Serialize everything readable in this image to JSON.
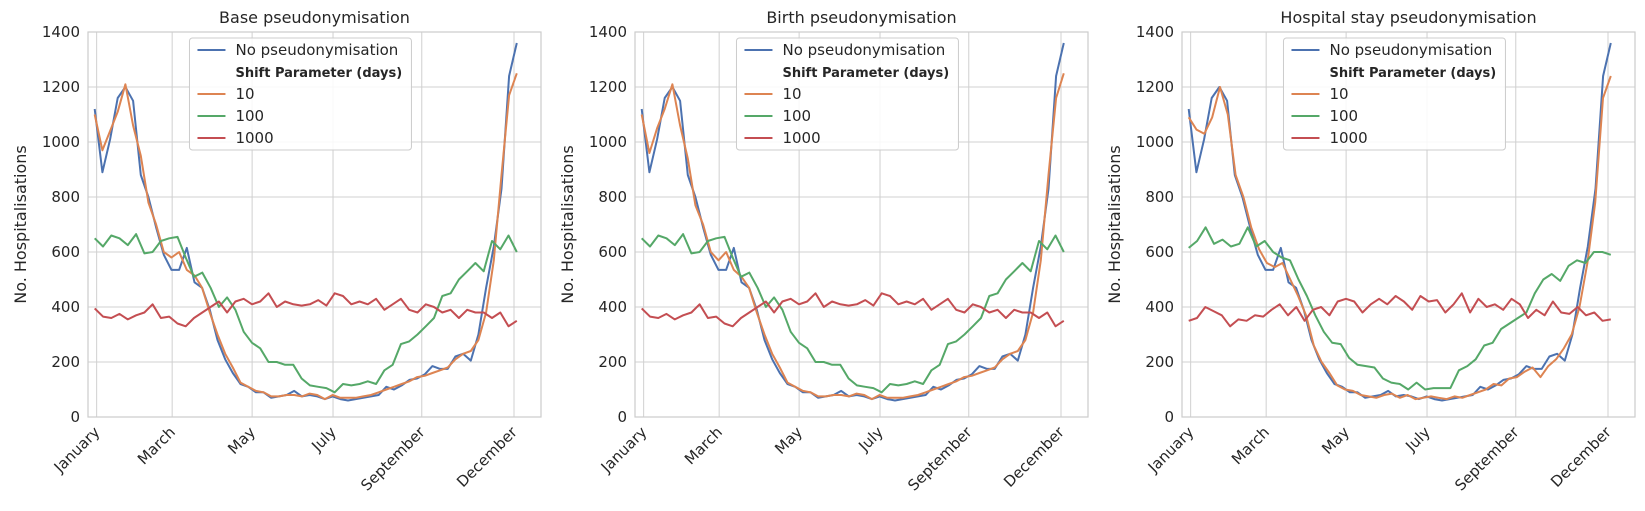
{
  "colors": {
    "background": "#ffffff",
    "grid": "#d0d0d0",
    "spine": "#cccccc",
    "text": "#262626",
    "legend_border": "#cccccc"
  },
  "legend": {
    "placement": "upper-center",
    "header": "Shift Parameter (days)",
    "entries": [
      {
        "label": "No pseudonymisation",
        "color": "#4c72b0"
      },
      {
        "label": "10",
        "color": "#dd8452"
      },
      {
        "label": "100",
        "color": "#55a868"
      },
      {
        "label": "1000",
        "color": "#c44e52"
      }
    ]
  },
  "chart_data": [
    {
      "type": "line",
      "title": "Base pseudonymisation",
      "xlabel": "",
      "ylabel": "No. Hospitalisations",
      "x_ticks": [
        "January",
        "March",
        "May",
        "July",
        "September",
        "December"
      ],
      "y_ticks": [
        0,
        200,
        400,
        600,
        800,
        1000,
        1200,
        1400
      ],
      "ylim": [
        0,
        1400
      ],
      "grid": true,
      "series": [
        {
          "name": "No pseudonymisation",
          "color": "#4c72b0",
          "values": [
            1120,
            890,
            1010,
            1160,
            1200,
            1150,
            880,
            800,
            690,
            590,
            535,
            535,
            615,
            490,
            470,
            390,
            280,
            210,
            160,
            120,
            110,
            90,
            90,
            70,
            75,
            80,
            95,
            75,
            80,
            75,
            65,
            75,
            65,
            60,
            65,
            70,
            75,
            80,
            110,
            100,
            115,
            135,
            140,
            155,
            185,
            175,
            175,
            220,
            230,
            205,
            300,
            470,
            620,
            830,
            1240,
            1360
          ]
        },
        {
          "name": "10",
          "color": "#dd8452",
          "values": [
            1100,
            970,
            1040,
            1110,
            1210,
            1060,
            950,
            780,
            700,
            600,
            580,
            600,
            535,
            515,
            470,
            380,
            300,
            230,
            180,
            125,
            110,
            95,
            90,
            75,
            75,
            80,
            80,
            75,
            85,
            80,
            65,
            80,
            70,
            70,
            70,
            75,
            80,
            90,
            100,
            110,
            120,
            130,
            145,
            150,
            160,
            170,
            180,
            210,
            230,
            240,
            280,
            380,
            570,
            880,
            1170,
            1250
          ]
        },
        {
          "name": "100",
          "color": "#55a868",
          "values": [
            650,
            620,
            660,
            650,
            625,
            665,
            595,
            600,
            640,
            650,
            655,
            580,
            510,
            525,
            470,
            400,
            435,
            390,
            310,
            270,
            250,
            200,
            200,
            190,
            190,
            140,
            115,
            110,
            105,
            90,
            120,
            115,
            120,
            130,
            120,
            170,
            190,
            265,
            275,
            300,
            330,
            360,
            440,
            450,
            500,
            530,
            560,
            530,
            640,
            610,
            660,
            600
          ]
        },
        {
          "name": "1000",
          "color": "#c44e52",
          "values": [
            395,
            365,
            360,
            375,
            355,
            370,
            380,
            410,
            360,
            365,
            340,
            330,
            360,
            380,
            400,
            420,
            380,
            420,
            430,
            410,
            420,
            450,
            400,
            420,
            410,
            405,
            410,
            425,
            405,
            450,
            440,
            410,
            420,
            410,
            430,
            390,
            410,
            430,
            390,
            380,
            410,
            400,
            380,
            390,
            360,
            390,
            380,
            380,
            360,
            380,
            330,
            350
          ]
        }
      ]
    },
    {
      "type": "line",
      "title": "Birth pseudonymisation",
      "xlabel": "",
      "ylabel": "No. Hospitalisations",
      "x_ticks": [
        "January",
        "March",
        "May",
        "July",
        "September",
        "December"
      ],
      "y_ticks": [
        0,
        200,
        400,
        600,
        800,
        1000,
        1200,
        1400
      ],
      "ylim": [
        0,
        1400
      ],
      "grid": true,
      "series": [
        {
          "name": "No pseudonymisation",
          "color": "#4c72b0",
          "values": [
            1120,
            890,
            1010,
            1160,
            1200,
            1150,
            880,
            800,
            690,
            590,
            535,
            535,
            615,
            490,
            470,
            390,
            280,
            210,
            160,
            120,
            110,
            90,
            90,
            70,
            75,
            80,
            95,
            75,
            80,
            75,
            65,
            75,
            65,
            60,
            65,
            70,
            75,
            80,
            110,
            100,
            115,
            135,
            140,
            155,
            185,
            175,
            175,
            220,
            230,
            205,
            300,
            470,
            620,
            830,
            1240,
            1360
          ]
        },
        {
          "name": "10",
          "color": "#dd8452",
          "values": [
            1100,
            960,
            1050,
            1120,
            1210,
            1060,
            940,
            770,
            700,
            600,
            570,
            600,
            535,
            510,
            470,
            380,
            300,
            230,
            180,
            125,
            110,
            95,
            90,
            75,
            75,
            80,
            80,
            75,
            85,
            80,
            65,
            80,
            70,
            70,
            70,
            75,
            80,
            90,
            100,
            110,
            120,
            130,
            145,
            150,
            160,
            170,
            180,
            210,
            230,
            240,
            280,
            380,
            570,
            880,
            1160,
            1250
          ]
        },
        {
          "name": "100",
          "color": "#55a868",
          "values": [
            650,
            620,
            660,
            650,
            625,
            665,
            595,
            600,
            640,
            650,
            655,
            580,
            510,
            525,
            470,
            400,
            435,
            390,
            310,
            270,
            250,
            200,
            200,
            190,
            190,
            140,
            115,
            110,
            105,
            90,
            120,
            115,
            120,
            130,
            120,
            170,
            190,
            265,
            275,
            300,
            330,
            360,
            440,
            450,
            500,
            530,
            560,
            530,
            640,
            610,
            660,
            600
          ]
        },
        {
          "name": "1000",
          "color": "#c44e52",
          "values": [
            395,
            365,
            360,
            375,
            355,
            370,
            380,
            410,
            360,
            365,
            340,
            330,
            360,
            380,
            400,
            420,
            380,
            420,
            430,
            410,
            420,
            450,
            400,
            420,
            410,
            405,
            410,
            425,
            405,
            450,
            440,
            410,
            420,
            410,
            430,
            390,
            410,
            430,
            390,
            380,
            410,
            400,
            380,
            390,
            360,
            390,
            380,
            380,
            360,
            380,
            330,
            350
          ]
        }
      ]
    },
    {
      "type": "line",
      "title": "Hospital stay pseudonymisation",
      "xlabel": "",
      "ylabel": "No. Hospitalisations",
      "x_ticks": [
        "January",
        "March",
        "May",
        "July",
        "September",
        "December"
      ],
      "y_ticks": [
        0,
        200,
        400,
        600,
        800,
        1000,
        1200,
        1400
      ],
      "ylim": [
        0,
        1400
      ],
      "grid": true,
      "series": [
        {
          "name": "No pseudonymisation",
          "color": "#4c72b0",
          "values": [
            1120,
            890,
            1010,
            1160,
            1200,
            1150,
            880,
            800,
            690,
            590,
            535,
            535,
            615,
            490,
            470,
            390,
            280,
            210,
            160,
            120,
            110,
            90,
            90,
            70,
            75,
            80,
            95,
            75,
            80,
            75,
            65,
            75,
            65,
            60,
            65,
            70,
            75,
            80,
            110,
            100,
            115,
            135,
            140,
            155,
            185,
            175,
            175,
            220,
            230,
            205,
            300,
            470,
            620,
            830,
            1240,
            1360
          ]
        },
        {
          "name": "10",
          "color": "#dd8452",
          "values": [
            1090,
            1045,
            1030,
            1090,
            1200,
            1100,
            880,
            800,
            690,
            610,
            560,
            545,
            560,
            500,
            440,
            370,
            260,
            200,
            160,
            115,
            100,
            95,
            80,
            75,
            70,
            80,
            85,
            70,
            80,
            65,
            70,
            75,
            70,
            65,
            75,
            70,
            80,
            90,
            100,
            120,
            115,
            140,
            145,
            165,
            180,
            145,
            185,
            210,
            250,
            300,
            400,
            560,
            780,
            1160,
            1240
          ]
        },
        {
          "name": "100",
          "color": "#55a868",
          "values": [
            615,
            640,
            690,
            630,
            645,
            620,
            630,
            690,
            620,
            640,
            600,
            580,
            570,
            500,
            440,
            370,
            310,
            270,
            265,
            215,
            190,
            185,
            180,
            140,
            125,
            120,
            100,
            125,
            100,
            105,
            105,
            105,
            170,
            185,
            210,
            260,
            270,
            320,
            340,
            360,
            380,
            450,
            500,
            520,
            495,
            550,
            570,
            560,
            600,
            600,
            590
          ]
        },
        {
          "name": "1000",
          "color": "#c44e52",
          "values": [
            350,
            360,
            400,
            385,
            370,
            330,
            355,
            350,
            370,
            365,
            390,
            410,
            370,
            400,
            350,
            390,
            400,
            370,
            420,
            430,
            420,
            380,
            410,
            430,
            410,
            440,
            420,
            390,
            440,
            420,
            425,
            380,
            410,
            450,
            380,
            430,
            400,
            410,
            390,
            430,
            410,
            360,
            390,
            370,
            420,
            380,
            375,
            400,
            370,
            380,
            350,
            355
          ]
        }
      ]
    }
  ]
}
